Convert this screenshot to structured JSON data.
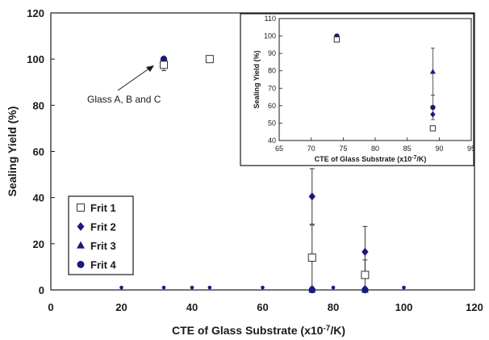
{
  "chart_data": [
    {
      "type": "scatter",
      "title": "",
      "xlabel": "CTE of Glass Substrate (x10",
      "xlabel_sup": "-7",
      "xlabel_tail": "/K)",
      "ylabel": "Sealing Yield (%)",
      "xlim": [
        0,
        120
      ],
      "ylim": [
        0,
        120
      ],
      "xticks": [
        "0",
        "20",
        "40",
        "60",
        "80",
        "100",
        "120"
      ],
      "yticks": [
        "0",
        "20",
        "40",
        "60",
        "80",
        "100",
        "120"
      ],
      "series": [
        {
          "name": "Frit 1",
          "marker": "square-open",
          "points": [
            {
              "x": 32,
              "y": 97.5,
              "err": 2.5
            },
            {
              "x": 45,
              "y": 100,
              "err": 0
            },
            {
              "x": 74,
              "y": 14,
              "err": 14
            },
            {
              "x": 89,
              "y": 6.5,
              "err": 6.5
            }
          ]
        },
        {
          "name": "Frit 2",
          "marker": "diamond",
          "points": [
            {
              "x": 32,
              "y": 99,
              "err": 0
            },
            {
              "x": 45,
              "y": 100,
              "err": 0
            },
            {
              "x": 74,
              "y": 40.5,
              "err": 12
            },
            {
              "x": 89,
              "y": 16.5,
              "err": 11
            }
          ]
        },
        {
          "name": "Frit 3",
          "marker": "triangle",
          "points": [
            {
              "x": 32,
              "y": 100,
              "err": 0
            },
            {
              "x": 45,
              "y": 100,
              "err": 0
            },
            {
              "x": 74,
              "y": 0,
              "err": 0
            },
            {
              "x": 89,
              "y": 0,
              "err": 0
            }
          ]
        },
        {
          "name": "Frit 4",
          "marker": "circle",
          "points": [
            {
              "x": 32,
              "y": 100,
              "err": 0
            },
            {
              "x": 45,
              "y": 100,
              "err": 0
            },
            {
              "x": 74,
              "y": 0,
              "err": 0
            },
            {
              "x": 89,
              "y": 0,
              "err": 0
            }
          ]
        }
      ],
      "zero_dots": [
        20,
        32,
        40,
        45,
        60,
        74,
        80,
        89,
        100
      ],
      "annotation": "Glass A, B and C",
      "legend_position": "bottom-left",
      "grid": false
    },
    {
      "type": "scatter",
      "title": "",
      "xlabel": "CTE of Glass Substrate (x10",
      "xlabel_sup": "-7",
      "xlabel_tail": "/K)",
      "ylabel": "Sealing Yield (%)",
      "xlim": [
        65,
        95
      ],
      "ylim": [
        40,
        110
      ],
      "xticks": [
        "65",
        "70",
        "75",
        "80",
        "85",
        "90",
        "95"
      ],
      "yticks": [
        "40",
        "50",
        "60",
        "70",
        "80",
        "90",
        "100",
        "110"
      ],
      "series": [
        {
          "name": "Frit 1",
          "marker": "square-open",
          "points": [
            {
              "x": 74,
              "y": 98,
              "err": 1.5
            },
            {
              "x": 89,
              "y": 47,
              "err": 0
            }
          ]
        },
        {
          "name": "Frit 2",
          "marker": "diamond",
          "points": [
            {
              "x": 74,
              "y": 99,
              "err": 0
            },
            {
              "x": 89,
              "y": 55,
              "err": 0
            }
          ]
        },
        {
          "name": "Frit 3",
          "marker": "triangle",
          "points": [
            {
              "x": 74,
              "y": 99.5,
              "err": 0
            },
            {
              "x": 89,
              "y": 79.5,
              "err": 13.5
            }
          ]
        },
        {
          "name": "Frit 4",
          "marker": "circle",
          "points": [
            {
              "x": 74,
              "y": 100,
              "err": 0
            },
            {
              "x": 89,
              "y": 59,
              "err": 7
            }
          ]
        }
      ],
      "grid": false
    }
  ],
  "colors": {
    "marker": "#1a1a7a",
    "axis": "#1a1a1a",
    "background": "#ffffff"
  }
}
